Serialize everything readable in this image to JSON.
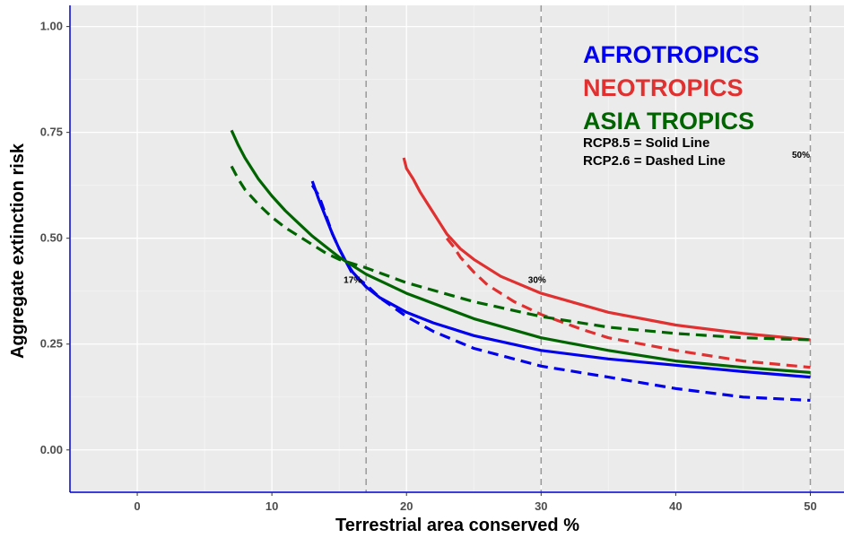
{
  "chart_data": {
    "type": "line",
    "xlabel": "Terrestrial area conserved %",
    "ylabel": "Aggregate extinction risk",
    "xlim": [
      -5,
      52.5
    ],
    "ylim": [
      -0.1,
      1.05
    ],
    "x_ticks": [
      "0",
      "10",
      "20",
      "30",
      "40",
      "50"
    ],
    "y_ticks": [
      "0.00",
      "0.25",
      "0.50",
      "0.75",
      "1.00"
    ],
    "grid": true,
    "legend_position": "top-right",
    "legend": {
      "regions": [
        {
          "name": "AFROTROPICS",
          "color": "#0000ee"
        },
        {
          "name": "NEOTROPICS",
          "color": "#e03030"
        },
        {
          "name": "ASIA TROPICS",
          "color": "#006400"
        }
      ],
      "line_notes": [
        "RCP8.5 = Solid Line",
        "RCP2.6 = Dashed Line"
      ]
    },
    "reference_lines": [
      {
        "x": 17,
        "label": "17%"
      },
      {
        "x": 30,
        "label": "30%"
      },
      {
        "x": 50,
        "label": "50%"
      }
    ],
    "series": [
      {
        "region": "AFROTROPICS",
        "scenario": "RCP8.5",
        "style": "solid",
        "color": "#0000ee",
        "x": [
          13,
          13.5,
          14,
          14.5,
          15,
          15.5,
          16,
          17,
          18,
          20,
          22,
          25,
          30,
          35,
          40,
          45,
          50
        ],
        "y": [
          0.635,
          0.59,
          0.55,
          0.51,
          0.475,
          0.445,
          0.42,
          0.385,
          0.36,
          0.325,
          0.3,
          0.27,
          0.235,
          0.215,
          0.2,
          0.185,
          0.172
        ]
      },
      {
        "region": "AFROTROPICS",
        "scenario": "RCP2.6",
        "style": "dashed",
        "color": "#0000ee",
        "x": [
          13,
          13.5,
          14,
          14.5,
          15,
          15.5,
          16,
          17,
          18,
          20,
          22,
          25,
          30,
          35,
          40,
          45,
          50
        ],
        "y": [
          0.625,
          0.6,
          0.555,
          0.51,
          0.475,
          0.445,
          0.415,
          0.39,
          0.36,
          0.315,
          0.28,
          0.24,
          0.198,
          0.172,
          0.145,
          0.125,
          0.117
        ]
      },
      {
        "region": "NEOTROPICS",
        "scenario": "RCP8.5",
        "style": "solid",
        "color": "#e03030",
        "x": [
          19.8,
          20,
          20.5,
          21,
          21.5,
          22,
          22.5,
          23,
          24,
          25,
          27,
          30,
          35,
          40,
          45,
          50
        ],
        "y": [
          0.69,
          0.665,
          0.64,
          0.61,
          0.585,
          0.56,
          0.535,
          0.51,
          0.475,
          0.45,
          0.41,
          0.37,
          0.325,
          0.295,
          0.275,
          0.26
        ]
      },
      {
        "region": "NEOTROPICS",
        "scenario": "RCP2.6",
        "style": "dashed",
        "color": "#e03030",
        "x": [
          23,
          23.5,
          24,
          25,
          26,
          28,
          30,
          33,
          35,
          40,
          45,
          50
        ],
        "y": [
          0.5,
          0.48,
          0.455,
          0.42,
          0.39,
          0.35,
          0.32,
          0.285,
          0.265,
          0.235,
          0.21,
          0.195
        ]
      },
      {
        "region": "ASIA TROPICS",
        "scenario": "RCP8.5",
        "style": "solid",
        "color": "#006400",
        "x": [
          7,
          7.5,
          8,
          9,
          10,
          11,
          12,
          13,
          14,
          15,
          17,
          20,
          25,
          30,
          35,
          40,
          45,
          50
        ],
        "y": [
          0.755,
          0.72,
          0.69,
          0.64,
          0.6,
          0.565,
          0.535,
          0.505,
          0.48,
          0.455,
          0.415,
          0.37,
          0.31,
          0.265,
          0.235,
          0.21,
          0.195,
          0.183
        ]
      },
      {
        "region": "ASIA TROPICS",
        "scenario": "RCP2.6",
        "style": "dashed",
        "color": "#006400",
        "x": [
          7,
          7.5,
          8,
          9,
          10,
          11,
          12,
          13,
          14,
          15,
          17,
          20,
          25,
          30,
          35,
          40,
          45,
          50
        ],
        "y": [
          0.67,
          0.64,
          0.615,
          0.58,
          0.55,
          0.525,
          0.505,
          0.485,
          0.465,
          0.45,
          0.43,
          0.395,
          0.35,
          0.315,
          0.29,
          0.275,
          0.265,
          0.26
        ]
      }
    ]
  }
}
